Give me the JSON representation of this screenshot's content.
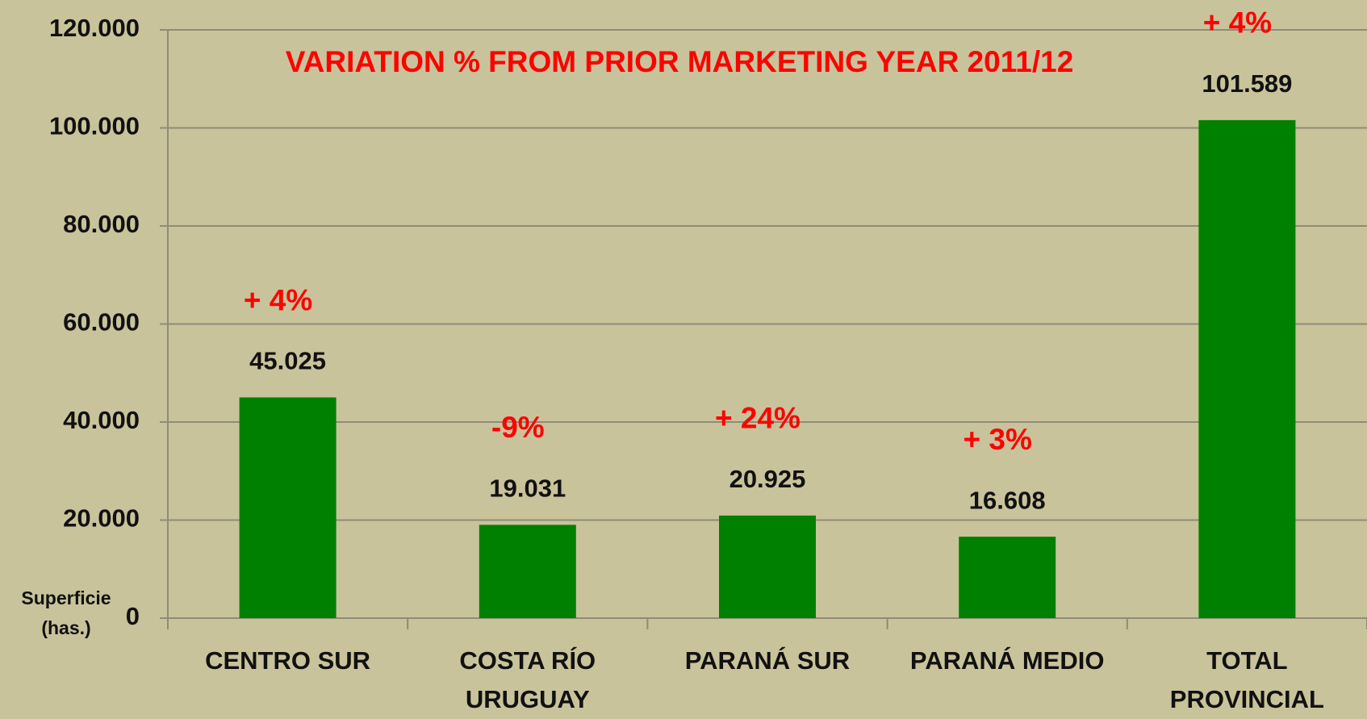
{
  "chart_data": {
    "type": "bar",
    "title": "VARIATION % FROM PRIOR MARKETING YEAR 2011/12",
    "y_label": [
      "Superficie",
      "(has.)"
    ],
    "categories": [
      "CENTRO SUR",
      "COSTA RÍO URUGUAY",
      "PARANÁ SUR",
      "PARANÁ MEDIO",
      "TOTAL PROVINCIAL"
    ],
    "values": [
      45025,
      19031,
      20925,
      16608,
      101589
    ],
    "value_labels": [
      "45.025",
      "19.031",
      "20.925",
      "16.608",
      "101.589"
    ],
    "annotations": [
      "+ 4%",
      "-9%",
      "+ 24%",
      "+ 3%",
      "+ 4%"
    ],
    "color": "#008000",
    "ylim": [
      0,
      120000
    ],
    "yticks": [
      0,
      {
        "value": 20000,
        "label": "20.000"
      },
      {
        "value": 40000,
        "label": "40.000"
      },
      {
        "value": 60000,
        "label": "60.000"
      },
      {
        "value": 80000,
        "label": "80.000"
      },
      {
        "value": 100000,
        "label": "100.000"
      },
      {
        "value": 120000,
        "label": "120.000"
      }
    ],
    "grid": true
  }
}
